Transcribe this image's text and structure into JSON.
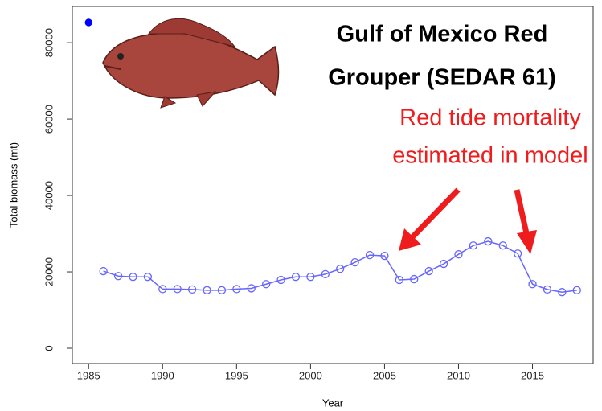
{
  "chart_data": {
    "type": "line",
    "title": [
      "Gulf of Mexico Red",
      "Grouper (SEDAR 61)"
    ],
    "annotation": [
      "Red tide mortality",
      "estimated in model"
    ],
    "annotation_color": "#ee1c1c",
    "xlabel": "Year",
    "ylabel": "Total biomass (mt)",
    "x": [
      1985,
      1986,
      1987,
      1988,
      1989,
      1990,
      1991,
      1992,
      1993,
      1994,
      1995,
      1996,
      1997,
      1998,
      1999,
      2000,
      2001,
      2002,
      2003,
      2004,
      2005,
      2006,
      2007,
      2008,
      2009,
      2010,
      2011,
      2012,
      2013,
      2014,
      2015,
      2016,
      2017,
      2018
    ],
    "series": [
      {
        "color": "#6666ff",
        "marker": "open",
        "values": [
          null,
          20200,
          18900,
          18700,
          18700,
          15500,
          15500,
          15400,
          15200,
          15200,
          15500,
          15700,
          16800,
          17900,
          18700,
          18700,
          19400,
          20800,
          22500,
          24400,
          24200,
          17900,
          18100,
          20200,
          22100,
          24600,
          26900,
          28000,
          26900,
          24800,
          16800,
          15400,
          14700,
          15200
        ]
      },
      {
        "color": "#0000ff",
        "marker": "filled",
        "values": [
          85300,
          null,
          null,
          null,
          null,
          null,
          null,
          null,
          null,
          null,
          null,
          null,
          null,
          null,
          null,
          null,
          null,
          null,
          null,
          null,
          null,
          null,
          null,
          null,
          null,
          null,
          null,
          null,
          null,
          null,
          null,
          null,
          null,
          null
        ]
      }
    ],
    "xlim": [
      1983.9,
      2019.1
    ],
    "xticks": [
      1985,
      1990,
      1995,
      2000,
      2005,
      2010,
      2015
    ],
    "ylim": [
      -4000,
      89500
    ],
    "yticks": [
      0,
      20000,
      40000,
      60000,
      80000
    ]
  }
}
